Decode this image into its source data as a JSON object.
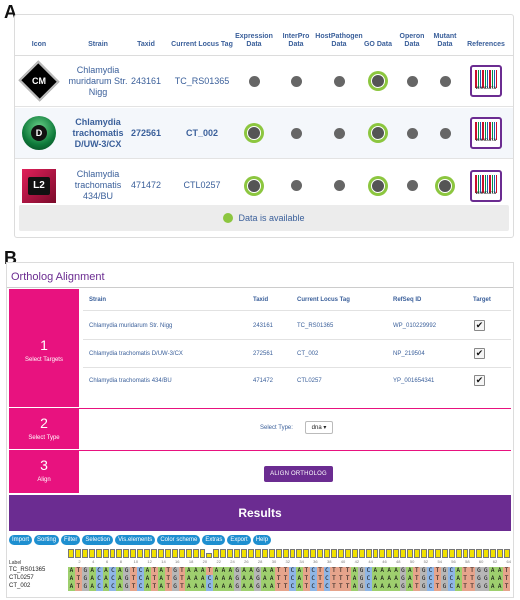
{
  "panel_a": {
    "letter": "A",
    "headers": [
      "Icon",
      "Strain",
      "Taxid",
      "Current Locus Tag",
      "Expression Data",
      "InterPro Data",
      "HostPathogen Data",
      "GO Data",
      "Operon Data",
      "Mutant Data",
      "References"
    ],
    "rows": [
      {
        "icon": "CM",
        "strain": "Chlamydia muridarum Str. Nigg",
        "taxid": "243161",
        "locus": "TC_RS01365",
        "availability": [
          false,
          false,
          false,
          true,
          false,
          false
        ],
        "reference": "WIKIDATA",
        "highlighted": false
      },
      {
        "icon": "D",
        "strain": "Chlamydia trachomatis D/UW-3/CX",
        "taxid": "272561",
        "locus": "CT_002",
        "availability": [
          true,
          false,
          false,
          true,
          false,
          false
        ],
        "reference": "WIKIDATA",
        "highlighted": true
      },
      {
        "icon": "L2",
        "strain": "Chlamydia trachomatis 434/BU",
        "taxid": "471472",
        "locus": "CTL0257",
        "availability": [
          true,
          false,
          false,
          true,
          false,
          true
        ],
        "reference": "WIKIDATA",
        "highlighted": false
      }
    ],
    "legend": "Data is available",
    "colors": {
      "available": "#8cc63f",
      "unavailable": "#666666",
      "link": "#3a5f9a"
    }
  },
  "panel_b": {
    "letter": "B",
    "title": "Ortholog Alignment",
    "steps": [
      {
        "num": "1",
        "label": "Select Targets"
      },
      {
        "num": "2",
        "label": "Select Type"
      },
      {
        "num": "3",
        "label": "Align"
      }
    ],
    "table_headers": [
      "Strain",
      "Taxid",
      "Current Locus Tag",
      "RefSeq ID",
      "Target"
    ],
    "targets": [
      {
        "strain": "Chlamydia muridarum Str. Nigg",
        "taxid": "243161",
        "locus": "TC_RS01365",
        "refseq": "WP_010229992",
        "checked": true
      },
      {
        "strain": "Chlamydia trachomatis D/UW-3/CX",
        "taxid": "272561",
        "locus": "CT_002",
        "refseq": "NP_219504",
        "checked": true
      },
      {
        "strain": "Chlamydia trachomatis 434/BU",
        "taxid": "471472",
        "locus": "CTL0257",
        "refseq": "YP_001654341",
        "checked": true
      }
    ],
    "select_type_label": "Select Type:",
    "select_type_value": "dna ▾",
    "align_button": "ALIGN ORTHOLOG",
    "results_title": "Results",
    "menu": [
      "Import",
      "Sorting",
      "Filter",
      "Selection",
      "Vis.elements",
      "Color scheme",
      "Extras",
      "Export",
      "Help"
    ],
    "conservation_label": "Label",
    "ruler_ticks": [
      "2",
      "4",
      "6",
      "8",
      "10",
      "12",
      "14",
      "16",
      "18",
      "20",
      "22",
      "24",
      "26",
      "28",
      "30",
      "32",
      "34",
      "36",
      "38",
      "40",
      "42",
      "44",
      "46",
      "48",
      "50",
      "52",
      "54",
      "56",
      "58",
      "60",
      "62",
      "64"
    ],
    "sequences": [
      {
        "name": "TC_RS01365",
        "seq": "ATGACACAGTCATATGTAAATAAAGAAGAATTCATCTCTTTAGCAAAAGATGCTGCATTGGAAT"
      },
      {
        "name": "CTL0257",
        "seq": "ATGACACAGTCATATGTAAACAAAGAAGAATTCATCTCTTTAGCAAAAGATGCTGCATTGGAAT"
      },
      {
        "name": "CT_002",
        "seq": "ATGACACAGTCATATGTAAACAAAGAAGAATTCATCTCTTTAGCAAAAGATGCTGCATTGGAAT"
      }
    ],
    "colors": {
      "magenta": "#e8127f",
      "purple": "#6b2c91",
      "button_blue": "#1e8fd0",
      "conserved": "#f2e200"
    }
  }
}
